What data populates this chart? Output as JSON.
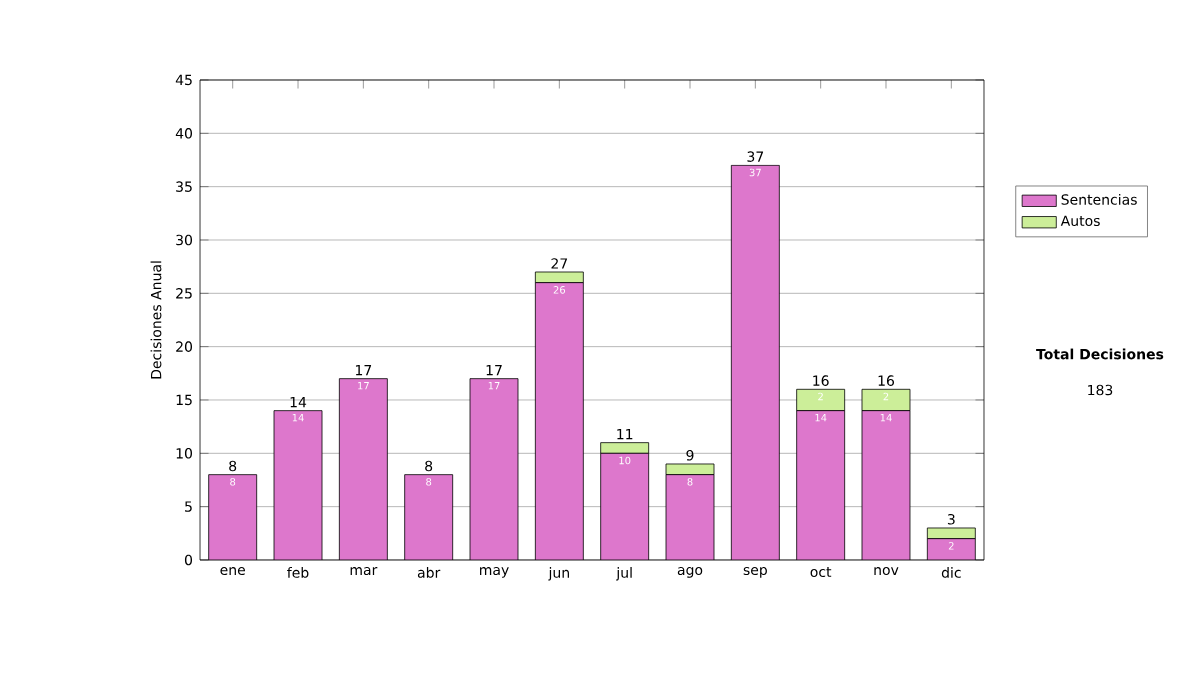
{
  "chart_data": {
    "type": "bar",
    "stacked": true,
    "ylabel": "Decisiones Anual",
    "categories": [
      "ene",
      "feb",
      "mar",
      "abr",
      "may",
      "jun",
      "jul",
      "ago",
      "sep",
      "oct",
      "nov",
      "dic"
    ],
    "series": [
      {
        "name": "Sentencias",
        "color": "#dd77cc",
        "values": [
          8,
          14,
          17,
          8,
          17,
          26,
          10,
          8,
          37,
          14,
          14,
          2
        ],
        "value_labels": [
          "8",
          "14",
          "17",
          "8",
          "17",
          "26",
          "10",
          "8",
          "37",
          "14",
          "14",
          "2"
        ]
      },
      {
        "name": "Autos",
        "color": "#ccee99",
        "values": [
          0,
          0,
          0,
          0,
          0,
          1,
          1,
          1,
          0,
          2,
          2,
          1
        ],
        "value_labels": [
          null,
          null,
          null,
          null,
          null,
          null,
          null,
          null,
          null,
          "2",
          "2",
          null
        ]
      }
    ],
    "totals": [
      "8",
      "14",
      "17",
      "8",
      "17",
      "27",
      "11",
      "9",
      "37",
      "16",
      "16",
      "3"
    ],
    "ylim": [
      0,
      45
    ],
    "yticks": [
      0,
      5,
      10,
      15,
      20,
      25,
      30,
      35,
      40,
      45
    ],
    "grid": "y",
    "legend": "right",
    "annotations": [
      "Total Decisiones",
      "183"
    ]
  }
}
